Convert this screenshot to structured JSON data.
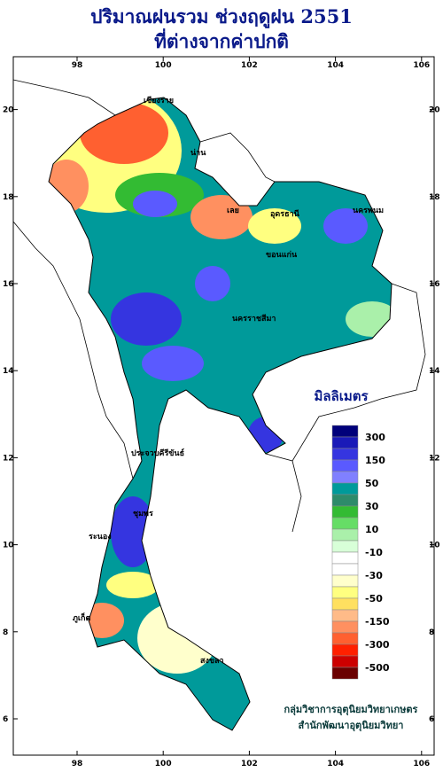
{
  "header": {
    "title_line1": "ปริมาณฝนรวม ช่วงฤดูฝน 2551",
    "title_line2": "ที่ต่างจากค่าปกติ"
  },
  "map": {
    "lon_ticks": [
      98,
      100,
      102,
      104,
      106
    ],
    "lat_ticks": [
      6,
      8,
      10,
      12,
      14,
      16,
      18,
      20
    ],
    "places": [
      "เชียงราย",
      "น่าน",
      "เลย",
      "อุดรธานี",
      "นครพนม",
      "ขอนแก่น",
      "นครราชสีมา",
      "ชุมพร",
      "ระนอง",
      "ภูเก็ต",
      "สงขลา",
      "ประจวบคีรีขันธ์"
    ]
  },
  "legend": {
    "title": "มิลลิเมตร",
    "colors": [
      "#00007a",
      "#1a1ab8",
      "#3535e0",
      "#5a5aff",
      "#8080ff",
      "#009a9a",
      "#2e8b6a",
      "#33bb33",
      "#66dd66",
      "#aaf0aa",
      "#d8ffd8",
      "#ffffff",
      "#ffffff",
      "#ffffcc",
      "#ffff80",
      "#ffe060",
      "#ffbb88",
      "#ff9060",
      "#ff6030",
      "#ff2000",
      "#cc0000",
      "#6a0000"
    ],
    "labels": [
      "300",
      "150",
      "50",
      "30",
      "10",
      "-10",
      "-30",
      "-50",
      "-150",
      "-300",
      "-500"
    ]
  },
  "footer": {
    "line1": "กลุ่มวิชาการอุตุนิยมวิทยาเกษตร",
    "line2": "สำนักพัฒนาอุตุนิยมวิทยา"
  }
}
